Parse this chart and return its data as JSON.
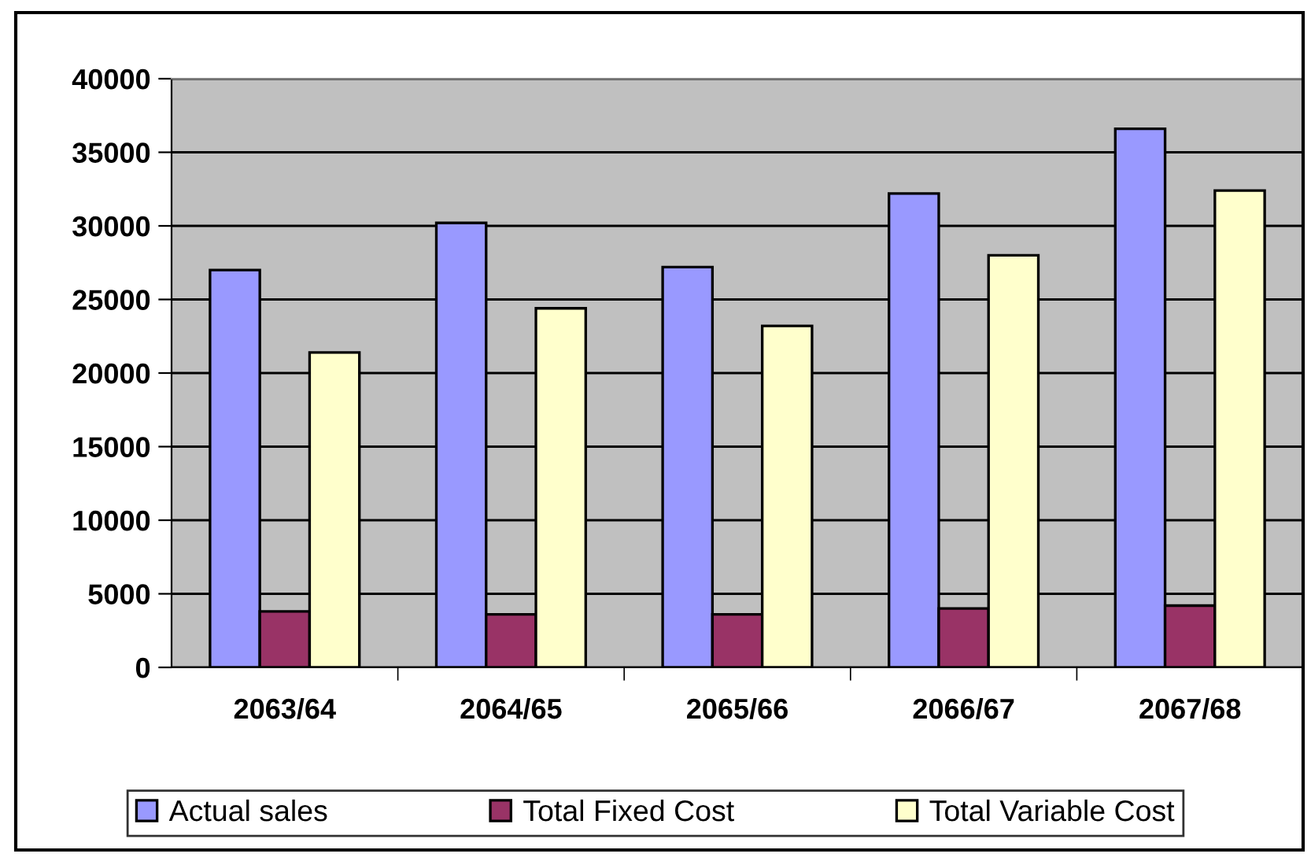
{
  "chart_data": {
    "type": "bar",
    "categories": [
      "2063/64",
      "2064/65",
      "2065/66",
      "2066/67",
      "2067/68"
    ],
    "series": [
      {
        "name": "Actual sales",
        "color": "#9999ff",
        "values": [
          27000,
          30200,
          27200,
          32200,
          36600
        ]
      },
      {
        "name": "Total Fixed Cost",
        "color": "#993366",
        "values": [
          3800,
          3600,
          3600,
          4000,
          4200
        ]
      },
      {
        "name": "Total Variable Cost",
        "color": "#ffffcc",
        "values": [
          21400,
          24400,
          23200,
          28000,
          32400
        ]
      }
    ],
    "ylim": [
      0,
      40000
    ],
    "yticks": [
      0,
      5000,
      10000,
      15000,
      20000,
      25000,
      30000,
      35000,
      40000
    ],
    "grid": "y",
    "legend": "bottom"
  }
}
